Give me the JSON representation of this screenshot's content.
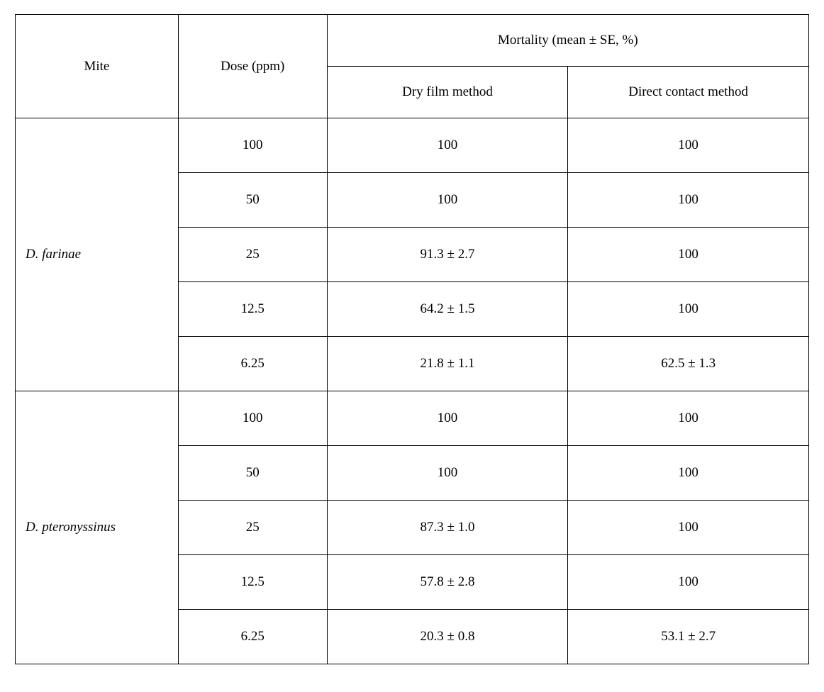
{
  "table": {
    "type": "table",
    "columns": {
      "mite": "Mite",
      "dose": "Dose (ppm)",
      "mortality_header": "Mortality (mean ± SE, %)",
      "dry_film": "Dry film method",
      "direct_contact": "Direct contact method"
    },
    "groups": [
      {
        "mite": "D. farinae",
        "rows": [
          {
            "dose": "100",
            "dry_film": "100",
            "direct_contact": "100"
          },
          {
            "dose": "50",
            "dry_film": "100",
            "direct_contact": "100"
          },
          {
            "dose": "25",
            "dry_film": "91.3 ± 2.7",
            "direct_contact": "100"
          },
          {
            "dose": "12.5",
            "dry_film": "64.2 ± 1.5",
            "direct_contact": "100"
          },
          {
            "dose": "6.25",
            "dry_film": "21.8 ± 1.1",
            "direct_contact": "62.5 ± 1.3"
          }
        ]
      },
      {
        "mite": "D. pteronyssinus",
        "rows": [
          {
            "dose": "100",
            "dry_film": "100",
            "direct_contact": "100"
          },
          {
            "dose": "50",
            "dry_film": "100",
            "direct_contact": "100"
          },
          {
            "dose": "25",
            "dry_film": "87.3 ± 1.0",
            "direct_contact": "100"
          },
          {
            "dose": "12.5",
            "dry_film": "57.8 ± 2.8",
            "direct_contact": "100"
          },
          {
            "dose": "6.25",
            "dry_film": "20.3 ± 0.8",
            "direct_contact": "53.1 ± 2.7"
          }
        ]
      }
    ],
    "column_widths": {
      "mite": 230,
      "dose": 210,
      "method": 340
    },
    "header_row_height": 72,
    "data_row_height": 76,
    "font_size": 19,
    "border_color": "#000000",
    "background_color": "#ffffff",
    "text_color": "#000000"
  }
}
